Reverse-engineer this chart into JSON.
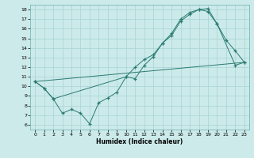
{
  "xlabel": "Humidex (Indice chaleur)",
  "bg_color": "#cceaea",
  "line_color": "#2a7a72",
  "grid_color": "#a8d4d4",
  "xlim": [
    -0.5,
    23.5
  ],
  "ylim": [
    5.5,
    18.5
  ],
  "xticks": [
    0,
    1,
    2,
    3,
    4,
    5,
    6,
    7,
    8,
    9,
    10,
    11,
    12,
    13,
    14,
    15,
    16,
    17,
    18,
    19,
    20,
    21,
    22,
    23
  ],
  "yticks": [
    6,
    7,
    8,
    9,
    10,
    11,
    12,
    13,
    14,
    15,
    16,
    17,
    18
  ],
  "line1_x": [
    0,
    1,
    2,
    3,
    4,
    5,
    6,
    7,
    8,
    9,
    10,
    11,
    12,
    13,
    14,
    15,
    16,
    17,
    18,
    19,
    20,
    21,
    22,
    23
  ],
  "line1_y": [
    10.5,
    9.8,
    8.7,
    7.2,
    7.6,
    7.2,
    6.1,
    8.3,
    8.8,
    9.4,
    11.0,
    10.8,
    12.2,
    13.1,
    14.5,
    15.5,
    17.0,
    17.7,
    18.0,
    18.1,
    16.5,
    14.8,
    13.7,
    12.5
  ],
  "line2_x": [
    0,
    1,
    2,
    10,
    11,
    12,
    13,
    14,
    15,
    16,
    17,
    18,
    19,
    20,
    22,
    23
  ],
  "line2_y": [
    10.5,
    9.8,
    8.7,
    11.0,
    12.0,
    12.8,
    13.3,
    14.5,
    15.3,
    16.8,
    17.5,
    18.0,
    17.8,
    16.5,
    12.2,
    12.5
  ],
  "line3_x": [
    0,
    23
  ],
  "line3_y": [
    10.5,
    12.5
  ]
}
